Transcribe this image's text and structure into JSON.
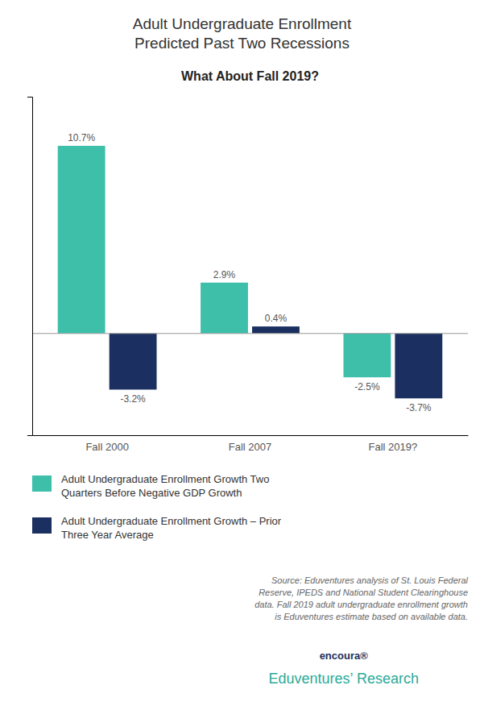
{
  "chart_data": {
    "type": "bar",
    "title": "Adult Undergraduate Enrollment\nPredicted Past Two Recessions",
    "subtitle": "What About Fall 2019?",
    "categories": [
      "Fall 2000",
      "Fall 2007",
      "Fall 2019?"
    ],
    "series": [
      {
        "name": "Adult Undergraduate Enrollment Growth Two\nQuarters Before Negative GDP Growth",
        "color": "#3dbfaa",
        "values": [
          10.7,
          2.9,
          -2.5
        ],
        "value_labels": [
          "10.7%",
          "2.9%",
          "-2.5%"
        ]
      },
      {
        "name": "Adult Undergraduate Enrollment Growth – Prior\nThree Year Average",
        "color": "#1b3060",
        "values": [
          -3.2,
          0.4,
          -3.7
        ],
        "value_labels": [
          "-3.2%",
          "0.4%",
          "-3.7%"
        ]
      }
    ],
    "ylim": [
      -5.8,
      13.5
    ],
    "tick_labels": "x",
    "grid": false,
    "legend": "bottom",
    "data_labels": true,
    "annotations": [
      "Source: Eduventures analysis of St. Louis Federal\nReserve, IPEDS and National Student Clearinghouse\ndata. Fall 2019 adult undergraduate enrollment growth\nis Eduventures estimate based on available data.",
      "encoura®",
      "Eduventures’ Research"
    ]
  }
}
